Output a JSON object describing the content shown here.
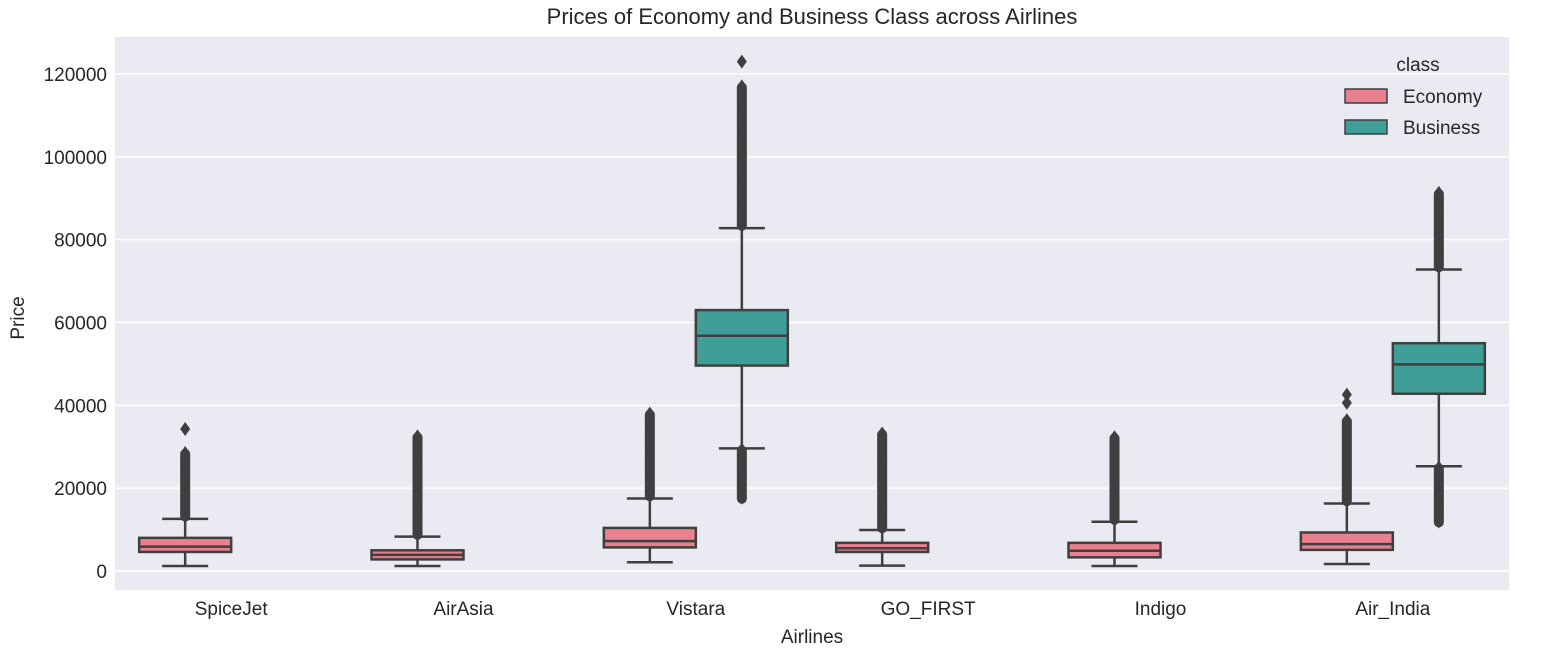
{
  "chart_data": {
    "type": "boxplot",
    "title": "Prices of Economy and Business Class across Airlines",
    "xlabel": "Airlines",
    "ylabel": "Price",
    "ylim": [
      -4500,
      128000
    ],
    "yticks": [
      0,
      20000,
      40000,
      60000,
      80000,
      100000,
      120000
    ],
    "ytick_labels": [
      "0",
      "20000",
      "40000",
      "60000",
      "80000",
      "100000",
      "120000"
    ],
    "grid": true,
    "categories": [
      "SpiceJet",
      "AirAsia",
      "Vistara",
      "GO_FIRST",
      "Indigo",
      "Air_India"
    ],
    "legend": {
      "title": "class",
      "position": "top-right"
    },
    "series": [
      {
        "name": "Economy",
        "color": "#e8808f",
        "boxes": [
          {
            "category": "SpiceJet",
            "whisker_low": 1200,
            "q1": 4600,
            "median": 5900,
            "q3": 8000,
            "whisker_high": 12600,
            "outlier_min": 12900,
            "outlier_max": 28500,
            "extreme_outliers": [
              34300
            ]
          },
          {
            "category": "AirAsia",
            "whisker_low": 1200,
            "q1": 2800,
            "median": 3900,
            "q3": 5000,
            "whisker_high": 8300,
            "outlier_min": 8500,
            "outlier_max": 32500,
            "extreme_outliers": []
          },
          {
            "category": "Vistara",
            "whisker_low": 2100,
            "q1": 5700,
            "median": 7200,
            "q3": 10400,
            "whisker_high": 17500,
            "outlier_min": 17800,
            "outlier_max": 38000,
            "extreme_outliers": []
          },
          {
            "category": "GO_FIRST",
            "whisker_low": 1300,
            "q1": 4600,
            "median": 5500,
            "q3": 6800,
            "whisker_high": 9900,
            "outlier_min": 10100,
            "outlier_max": 33200,
            "extreme_outliers": []
          },
          {
            "category": "Indigo",
            "whisker_low": 1200,
            "q1": 3300,
            "median": 4900,
            "q3": 6800,
            "whisker_high": 11900,
            "outlier_min": 12100,
            "outlier_max": 32300,
            "extreme_outliers": []
          },
          {
            "category": "Air_India",
            "whisker_low": 1700,
            "q1": 5100,
            "median": 6500,
            "q3": 9300,
            "whisker_high": 16300,
            "outlier_min": 16600,
            "outlier_max": 36400,
            "extreme_outliers": [
              40600,
              42600
            ]
          }
        ]
      },
      {
        "name": "Business",
        "color": "#3f9e98",
        "boxes": [
          {
            "category": "Vistara",
            "whisker_low": 29600,
            "q1": 49600,
            "median": 56800,
            "q3": 63000,
            "whisker_high": 82800,
            "outlier_min": 83100,
            "outlier_max": 117000,
            "extreme_outliers": [
              123000
            ],
            "low_outlier_min": 17200,
            "low_outlier_max": 29300
          },
          {
            "category": "Air_India",
            "whisker_low": 25300,
            "q1": 42800,
            "median": 49900,
            "q3": 55000,
            "whisker_high": 72800,
            "outlier_min": 73100,
            "outlier_max": 91300,
            "extreme_outliers": [],
            "low_outlier_min": 11500,
            "low_outlier_max": 25000
          }
        ]
      }
    ]
  }
}
